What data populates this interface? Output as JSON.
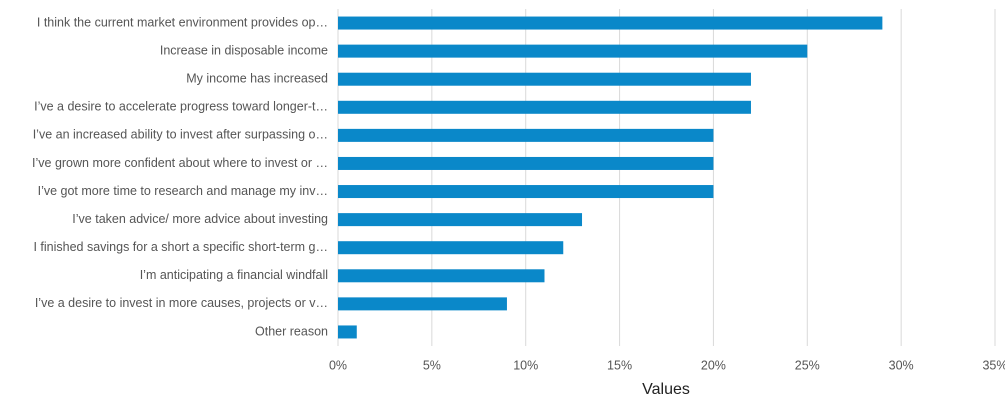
{
  "chart_data": {
    "type": "bar",
    "orientation": "horizontal",
    "categories": [
      "I think the current market environment provides op…",
      "Increase in disposable income",
      "My income has increased",
      "I’ve a desire to accelerate progress toward longer-t…",
      "I’ve an increased ability to invest after surpassing o…",
      "I’ve grown more confident about where to invest or …",
      "I’ve got more time to research and manage my inv…",
      "I’ve taken advice/ more advice about investing",
      "I finished savings for a short a specific short-term g…",
      "I’m anticipating a financial windfall",
      "I’ve a desire to invest in more causes, projects or v…",
      "Other reason"
    ],
    "values": [
      29,
      25,
      22,
      22,
      20,
      20,
      20,
      13,
      12,
      11,
      9,
      1
    ],
    "color": "#0a88c9",
    "xlabel": "Values",
    "xlim": [
      0,
      35
    ],
    "xticks": [
      {
        "value": 0,
        "label": "0%"
      },
      {
        "value": 5,
        "label": "5%"
      },
      {
        "value": 10,
        "label": "10%"
      },
      {
        "value": 15,
        "label": "15%"
      },
      {
        "value": 20,
        "label": "20%"
      },
      {
        "value": 25,
        "label": "25%"
      },
      {
        "value": 30,
        "label": "30%"
      },
      {
        "value": 35,
        "label": "35%"
      }
    ],
    "grid": true
  }
}
